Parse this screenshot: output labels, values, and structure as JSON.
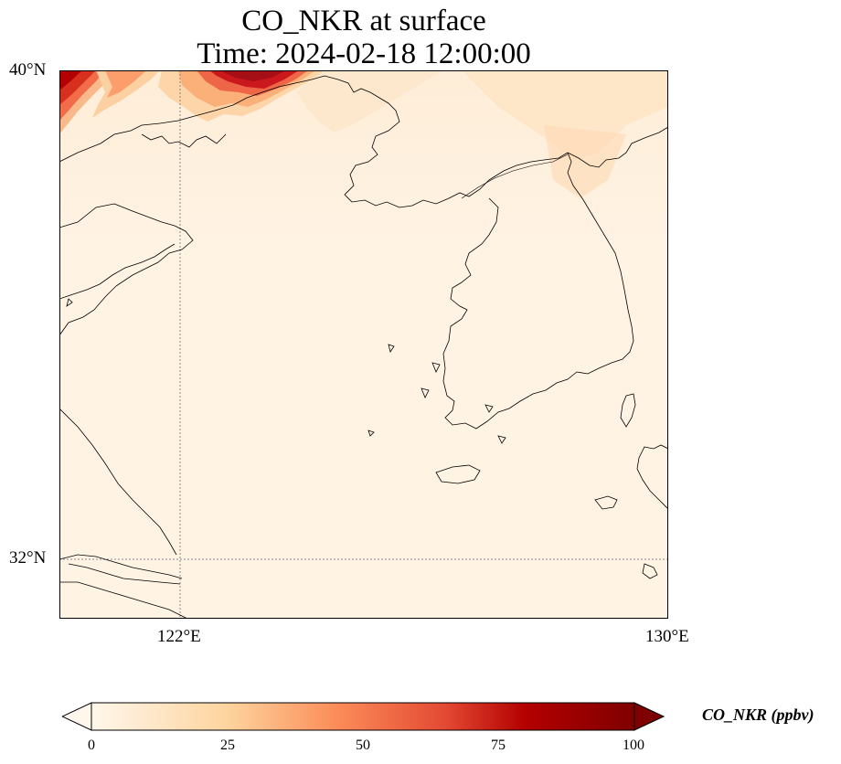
{
  "title": {
    "line1": "CO_NKR at surface",
    "line2": "Time: 2024-02-18 12:00:00"
  },
  "map": {
    "extent_lon": [
      120.4,
      130.0
    ],
    "extent_lat": [
      31.0,
      40.0
    ],
    "lat_ticks": [
      {
        "value": 40,
        "label": "40°N"
      },
      {
        "value": 32,
        "label": "32°N"
      }
    ],
    "lon_ticks": [
      {
        "value": 122,
        "label": "122°E"
      },
      {
        "value": 130,
        "label": "130°E"
      }
    ],
    "gridlines": "dotted at 122°E and 32°N",
    "coastline_color": "#000000",
    "field_description_colors": {
      "background": "#fff3e4",
      "high": "#b30000",
      "mid": "#f46d43"
    }
  },
  "colorbar": {
    "label": "CO_NKR (ppbv)",
    "min": 0,
    "max": 100,
    "extend": "both",
    "colormap": "OrRd",
    "ticks": [
      "0",
      "25",
      "50",
      "75",
      "100"
    ]
  }
}
